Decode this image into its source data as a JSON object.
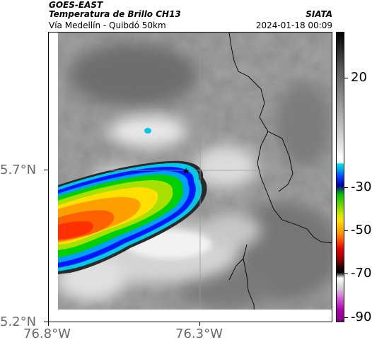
{
  "header": {
    "agency": "GOES-EAST",
    "title": "Temperatura de Brillo CH13",
    "subtitle": "Vía Medellín - Quibdó 50km",
    "org": "SIATA",
    "datetime": "2024-01-18 00:09"
  },
  "map": {
    "lat_labels": [
      "5.7°N",
      "5.2°N"
    ],
    "lon_labels": [
      "76.8°W",
      "76.3°W"
    ],
    "marker": "star-marker"
  },
  "colorbar": {
    "labels": [
      "20",
      "-30",
      "-50",
      "-70",
      "-90"
    ]
  }
}
